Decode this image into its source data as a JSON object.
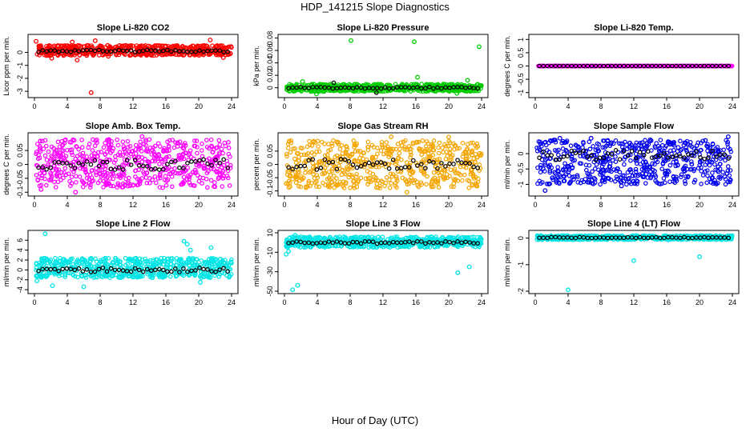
{
  "title": "HDP_141215  Slope Diagnostics",
  "xlabel": "Hour of Day (UTC)",
  "colors": {
    "point_outline": "#000000",
    "axis": "#000000"
  },
  "chart_data": [
    {
      "type": "scatter",
      "title": "Slope Li-820 CO2",
      "ylabel": "Licor ppm per min.",
      "color": "#ff0000",
      "xlim": [
        0,
        24
      ],
      "ylim": [
        -3.3,
        1.2
      ],
      "xticks": [
        0,
        4,
        8,
        12,
        16,
        20,
        24
      ],
      "yticks": [
        -3,
        -2,
        -1,
        0
      ],
      "band": [
        -0.25,
        0.55
      ],
      "center": 0.1,
      "outliers": [
        {
          "x": 0.2,
          "y": 0.85
        },
        {
          "x": 2.1,
          "y": -0.45
        },
        {
          "x": 4.6,
          "y": 0.8
        },
        {
          "x": 5.2,
          "y": -0.6
        },
        {
          "x": 6.9,
          "y": -3.1
        },
        {
          "x": 7.4,
          "y": 0.9
        },
        {
          "x": 9.0,
          "y": -0.3
        },
        {
          "x": 21.4,
          "y": 0.95
        },
        {
          "x": 23.0,
          "y": -0.4
        }
      ],
      "black_outliers": []
    },
    {
      "type": "scatter",
      "title": "Slope Li-820 Pressure",
      "ylabel": "kPa per min.",
      "color": "#00cc00",
      "xlim": [
        0,
        24
      ],
      "ylim": [
        -0.012,
        0.082
      ],
      "xticks": [
        0,
        4,
        8,
        12,
        16,
        20,
        24
      ],
      "yticks": [
        0.0,
        0.02,
        0.04,
        0.06,
        0.08
      ],
      "band": [
        -0.006,
        0.006
      ],
      "center": 0.0,
      "outliers": [
        {
          "x": 8.1,
          "y": 0.076
        },
        {
          "x": 15.8,
          "y": 0.074
        },
        {
          "x": 23.7,
          "y": 0.066
        },
        {
          "x": 2.2,
          "y": 0.01
        },
        {
          "x": 16.2,
          "y": 0.017
        },
        {
          "x": 22.3,
          "y": 0.012
        },
        {
          "x": 3.9,
          "y": -0.01
        },
        {
          "x": 21.0,
          "y": -0.009
        }
      ],
      "black_outliers": [
        {
          "x": 6.0,
          "y": 0.008
        },
        {
          "x": 11.2,
          "y": -0.008
        }
      ]
    },
    {
      "type": "scatter",
      "title": "Slope Li-820 Temp.",
      "ylabel": "degrees C per min.",
      "color": "#ff00ff",
      "xlim": [
        0,
        24
      ],
      "ylim": [
        -1.1,
        1.1
      ],
      "xticks": [
        0,
        4,
        8,
        12,
        16,
        20,
        24
      ],
      "yticks": [
        -1.0,
        -0.5,
        0.0,
        0.5,
        1.0
      ],
      "band": [
        0,
        0
      ],
      "center": 0.0,
      "outliers": [],
      "black_outliers": []
    },
    {
      "type": "scatter",
      "title": "Slope Amb. Box Temp.",
      "ylabel": "degrees C per min.",
      "color": "#ff00ff",
      "xlim": [
        0,
        24
      ],
      "ylim": [
        -0.105,
        0.105
      ],
      "xticks": [
        0,
        4,
        8,
        12,
        16,
        20,
        24
      ],
      "yticks": [
        -0.1,
        -0.05,
        0.0,
        0.05
      ],
      "band": [
        -0.085,
        0.09
      ],
      "center": 0.0,
      "outliers": [
        {
          "x": 5.0,
          "y": -0.1
        },
        {
          "x": 13.1,
          "y": 0.1
        },
        {
          "x": 0.8,
          "y": -0.09
        }
      ],
      "black_outliers": []
    },
    {
      "type": "scatter",
      "title": "Slope Gas Stream RH",
      "ylabel": "percent per min.",
      "color": "#f5a500",
      "xlim": [
        0,
        24
      ],
      "ylim": [
        -0.11,
        0.11
      ],
      "xticks": [
        0,
        4,
        8,
        12,
        16,
        20,
        24
      ],
      "yticks": [
        -0.1,
        -0.05,
        0.0,
        0.05
      ],
      "band": [
        -0.09,
        0.09
      ],
      "center": 0.0,
      "outliers": [
        {
          "x": 14.9,
          "y": -0.105
        },
        {
          "x": 13.0,
          "y": 0.104
        },
        {
          "x": 20.0,
          "y": 0.103
        }
      ],
      "black_outliers": []
    },
    {
      "type": "scatter",
      "title": "Slope Sample Flow",
      "ylabel": "ml/min per min.",
      "color": "#0000ee",
      "xlim": [
        0,
        24
      ],
      "ylim": [
        -1.3,
        0.6
      ],
      "xticks": [
        0,
        4,
        8,
        12,
        16,
        20,
        24
      ],
      "yticks": [
        -1.0,
        -0.5,
        0.0
      ],
      "band": [
        -1.0,
        0.45
      ],
      "center": -0.05,
      "outliers": [
        {
          "x": 1.2,
          "y": -1.2
        },
        {
          "x": 3.0,
          "y": 0.5
        },
        {
          "x": 6.8,
          "y": 0.5
        },
        {
          "x": 10.5,
          "y": -1.05
        },
        {
          "x": 14.0,
          "y": 0.45
        },
        {
          "x": 23.5,
          "y": 0.55
        }
      ],
      "black_outliers": []
    },
    {
      "type": "scatter",
      "title": "Slope Line 2 Flow",
      "ylabel": "ml/min per min.",
      "color": "#00e5e5",
      "xlim": [
        0,
        24
      ],
      "ylim": [
        -4.3,
        7.5
      ],
      "xticks": [
        0,
        4,
        8,
        12,
        16,
        20,
        24
      ],
      "yticks": [
        -4,
        -2,
        0,
        2,
        4,
        6
      ],
      "band": [
        -1.6,
        2.4
      ],
      "center": 0.0,
      "outliers": [
        {
          "x": 1.3,
          "y": 7.3
        },
        {
          "x": 18.2,
          "y": 5.8
        },
        {
          "x": 18.6,
          "y": 5.2
        },
        {
          "x": 2.2,
          "y": -3.2
        },
        {
          "x": 6.0,
          "y": -3.4
        },
        {
          "x": 19.0,
          "y": 4.0
        },
        {
          "x": 21.5,
          "y": 4.5
        },
        {
          "x": 20.2,
          "y": -2.5
        },
        {
          "x": 0.3,
          "y": -2.2
        }
      ],
      "black_outliers": []
    },
    {
      "type": "scatter",
      "title": "Slope Line 3 Flow",
      "ylabel": "ml/min per min.",
      "color": "#00e5e5",
      "xlim": [
        0,
        24
      ],
      "ylim": [
        -50.0,
        10.0
      ],
      "xticks": [
        0,
        4,
        8,
        12,
        16,
        20,
        24
      ],
      "yticks": [
        -50,
        -30,
        -10,
        10
      ],
      "band": [
        -5.0,
        6.0
      ],
      "center": 0.0,
      "outliers": [
        {
          "x": 0.5,
          "y": -9.0
        },
        {
          "x": 0.2,
          "y": -12.0
        },
        {
          "x": 1.0,
          "y": -48.5
        },
        {
          "x": 1.6,
          "y": -44.0
        },
        {
          "x": 1.3,
          "y": 7.5
        },
        {
          "x": 21.1,
          "y": -31.0
        },
        {
          "x": 22.5,
          "y": -25.0
        }
      ],
      "black_outliers": []
    },
    {
      "type": "scatter",
      "title": "Slope Line 4 (LT) Flow",
      "ylabel": "ml/min per min.",
      "color": "#00e5e5",
      "xlim": [
        0,
        24
      ],
      "ylim": [
        -2.0,
        0.2
      ],
      "xticks": [
        0,
        4,
        8,
        12,
        16,
        20,
        24
      ],
      "yticks": [
        -2.0,
        -1.0,
        0.0
      ],
      "band": [
        -0.06,
        0.1
      ],
      "center": 0.02,
      "outliers": [
        {
          "x": 4.0,
          "y": -1.95
        },
        {
          "x": 12.0,
          "y": -0.85
        },
        {
          "x": 20.0,
          "y": -0.7
        }
      ],
      "black_outliers": []
    }
  ]
}
